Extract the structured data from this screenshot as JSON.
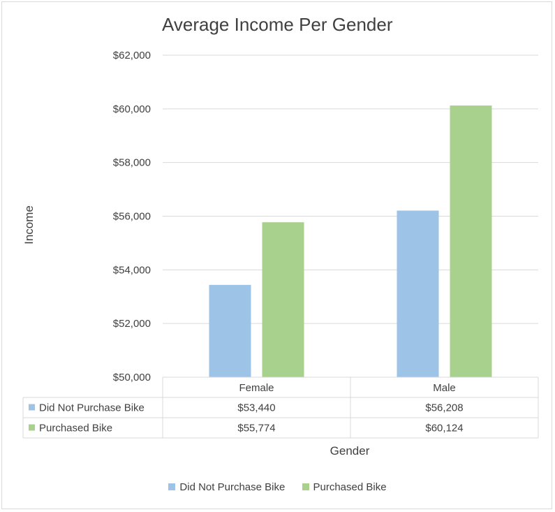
{
  "chart_data": {
    "type": "bar",
    "title": "Average Income Per Gender",
    "xlabel": "Gender",
    "ylabel": "Income",
    "categories": [
      "Female",
      "Male"
    ],
    "ylim": [
      50000,
      62000
    ],
    "yticks": [
      50000,
      52000,
      54000,
      56000,
      58000,
      60000,
      62000
    ],
    "ytick_labels": [
      "$50,000",
      "$52,000",
      "$54,000",
      "$56,000",
      "$58,000",
      "$60,000",
      "$62,000"
    ],
    "series": [
      {
        "name": "Did Not Purchase Bike",
        "values": [
          53440,
          56208
        ],
        "labels": [
          "$53,440",
          "$56,208"
        ],
        "color": "#9dc3e6"
      },
      {
        "name": "Purchased Bike",
        "values": [
          55774,
          60124
        ],
        "labels": [
          "$55,774",
          "$60,124"
        ],
        "color": "#a9d18e"
      }
    ],
    "grid": true,
    "data_table": true,
    "legend": "bottom"
  }
}
